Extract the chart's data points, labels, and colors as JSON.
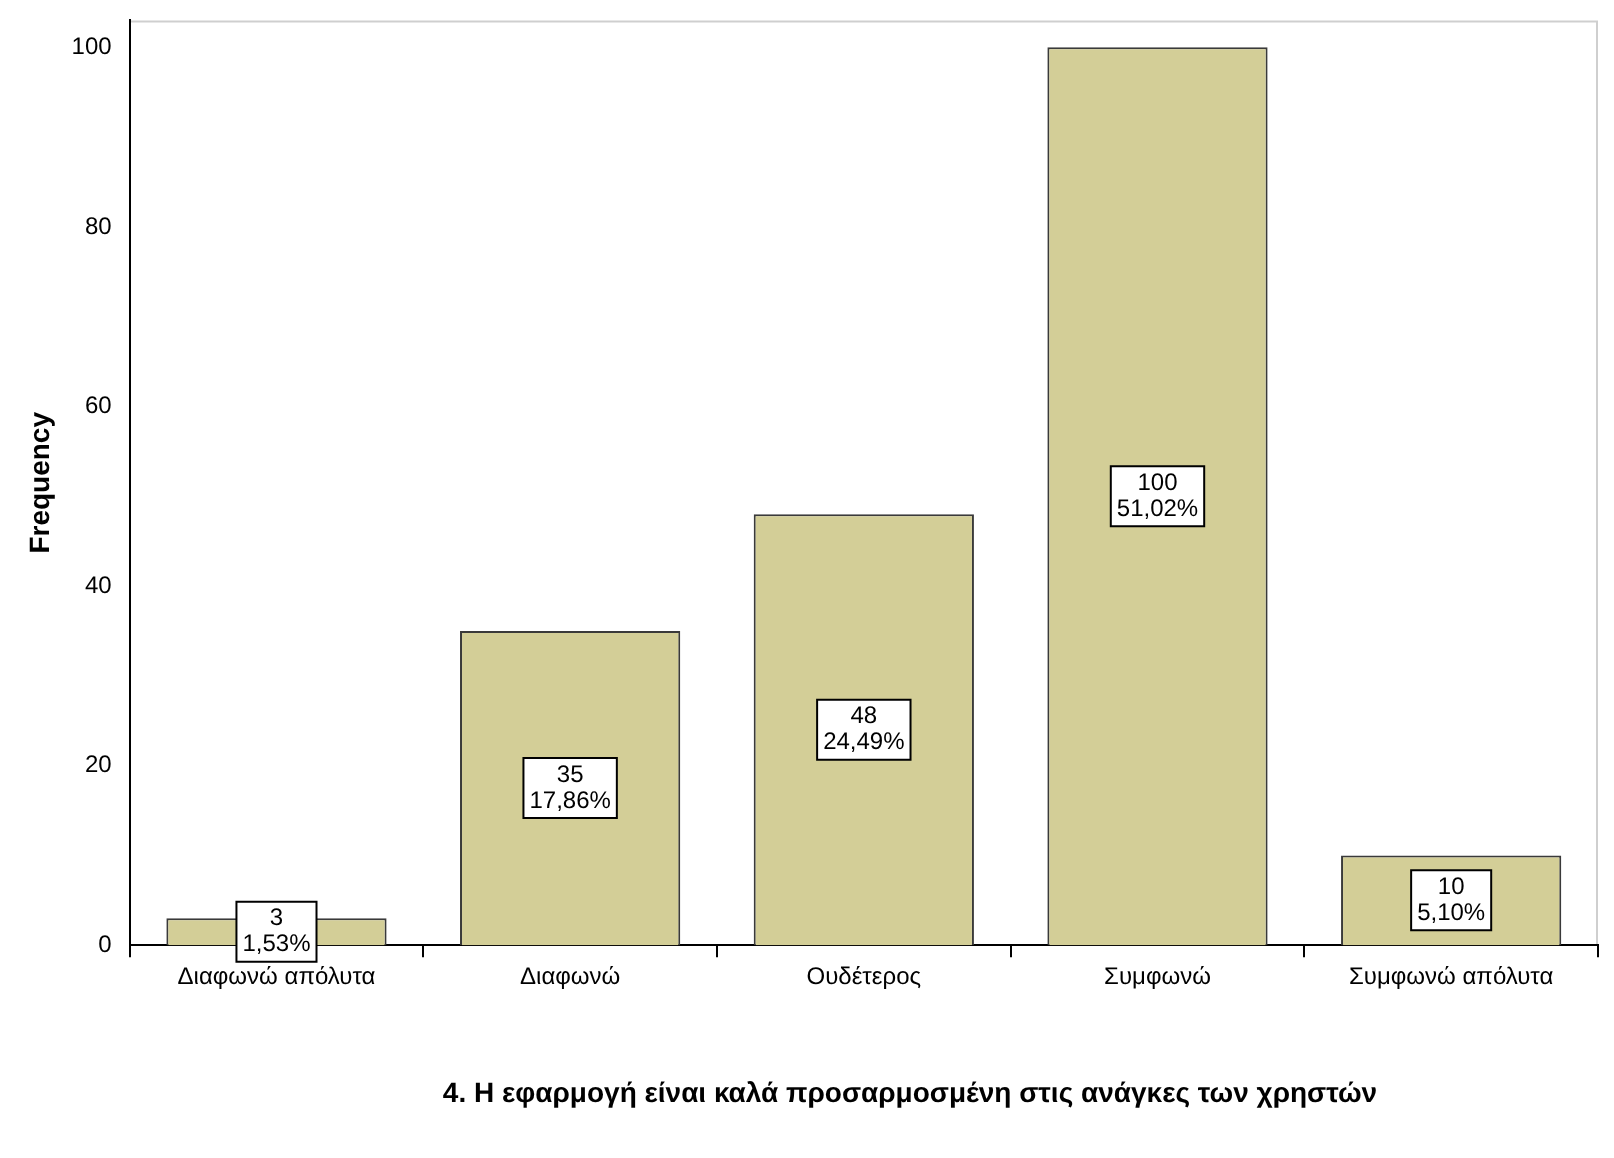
{
  "chart_data": {
    "type": "bar",
    "xlabel": "4. Η εφαρμογή είναι καλά προσαρμοσμένη στις ανάγκες των χρηστών",
    "ylabel": "Frequency",
    "categories": [
      "Διαφωνώ απόλυτα",
      "Διαφωνώ",
      "Ουδέτερος",
      "Συμφωνώ",
      "Συμφωνώ απόλυτα"
    ],
    "values": [
      3,
      35,
      48,
      100,
      10
    ],
    "color": "#d3ce97",
    "value_labels": [
      "3\n1,53%",
      "35\n17,86%",
      "48\n24,49%",
      "100\n51,02%",
      "10\n5,10%"
    ],
    "ylim": [
      0,
      103
    ],
    "yticks": [
      0,
      20,
      40,
      60,
      80,
      100
    ],
    "grid": false,
    "legend": false
  }
}
